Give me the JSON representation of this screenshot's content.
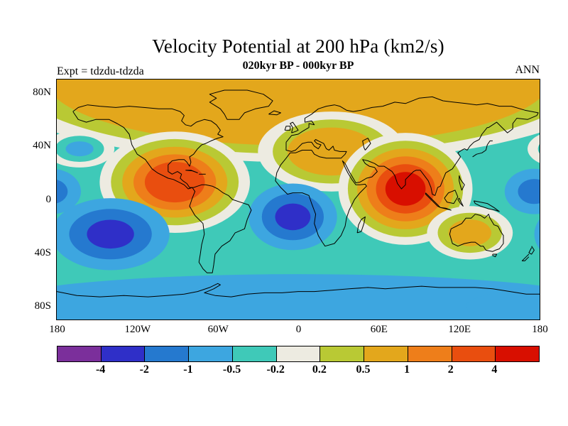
{
  "chart_data": {
    "type": "filled_contour_map",
    "title": "Velocity Potential at 200 hPa (km2/s)",
    "subtitle": "020kyr BP - 000kyr BP",
    "experiment_label": "Expt = tdzdu-tdzda",
    "season_label": "ANN",
    "variable": "Velocity Potential",
    "pressure_level": "200 hPa",
    "units": "km2/s",
    "projection": "equirectangular",
    "lon_range": [
      -180,
      180
    ],
    "lat_range": [
      -90,
      90
    ],
    "lat_ticks": [
      {
        "label": "80N",
        "lat": 80
      },
      {
        "label": "40N",
        "lat": 40
      },
      {
        "label": "0",
        "lat": 0
      },
      {
        "label": "40S",
        "lat": -40
      },
      {
        "label": "80S",
        "lat": -80
      }
    ],
    "lon_ticks": [
      {
        "label": "180",
        "lon": -180
      },
      {
        "label": "120W",
        "lon": -120
      },
      {
        "label": "60W",
        "lon": -60
      },
      {
        "label": "0",
        "lon": 0
      },
      {
        "label": "60E",
        "lon": 60
      },
      {
        "label": "120E",
        "lon": 120
      },
      {
        "label": "180",
        "lon": 180
      }
    ],
    "contour_levels": [
      -4,
      -2,
      -1,
      -0.5,
      -0.2,
      0.2,
      0.5,
      1,
      2,
      4
    ],
    "colorbar_labels": [
      "-4",
      "-2",
      "-1",
      "-0.5",
      "-0.2",
      "0.2",
      "0.5",
      "1",
      "2",
      "4"
    ],
    "palette": [
      "#7b2f9b",
      "#2f2fc8",
      "#2579cf",
      "#3da6e0",
      "#3fc9b8",
      "#edebe1",
      "#b9c934",
      "#e3a71c",
      "#ee7e1a",
      "#e94e0f",
      "#d80f00"
    ],
    "background_band": [
      -0.5,
      -0.2
    ],
    "anomaly_centers": [
      {
        "name": "arctic-northern-band-positive",
        "lon": 0,
        "lat": 90,
        "rx_deg": 235,
        "ry_deg": 62,
        "peak_value": 0.8,
        "core_scale": 0.8
      },
      {
        "name": "europe-north-africa-positive",
        "lon": 25,
        "lat": 36,
        "rx_deg": 55,
        "ry_deg": 30,
        "peak_value": 0.8,
        "core_scale": 0.6
      },
      {
        "name": "tropical-americas-positive",
        "lon": -92,
        "lat": 13,
        "rx_deg": 56,
        "ry_deg": 38,
        "peak_value": 3,
        "core_scale": 0.4
      },
      {
        "name": "south-asia-indian-ocean-positive",
        "lon": 80,
        "lat": 8,
        "rx_deg": 50,
        "ry_deg": 42,
        "peak_value": 4.5,
        "core_scale": 0.3
      },
      {
        "name": "australia-positive",
        "lon": 128,
        "lat": -25,
        "rx_deg": 32,
        "ry_deg": 20,
        "peak_value": 0.8,
        "core_scale": 0.5
      },
      {
        "name": "south-pacific-negative",
        "lon": -140,
        "lat": -26,
        "rx_deg": 44,
        "ry_deg": 27,
        "peak_value": -3,
        "core_scale": 0.4
      },
      {
        "name": "south-atlantic-africa-negative",
        "lon": -4,
        "lat": -13,
        "rx_deg": 33,
        "ry_deg": 25,
        "peak_value": -3,
        "core_scale": 0.4
      },
      {
        "name": "southern-ocean-negative-band",
        "lon": 0,
        "lat": -80,
        "rx_deg": 235,
        "ry_deg": 24,
        "peak_value": -0.8,
        "core_scale": 1
      },
      {
        "name": "north-pacific-negative",
        "lon": -163,
        "lat": 38,
        "rx_deg": 26,
        "ry_deg": 14,
        "peak_value": -0.8,
        "core_scale": 0.4,
        "neutral_ring": true
      },
      {
        "name": "west-pacific-equatorial-negative",
        "lon": 176,
        "lat": 6,
        "rx_deg": 22,
        "ry_deg": 17,
        "peak_value": -1.5,
        "core_scale": 0.55
      }
    ]
  }
}
